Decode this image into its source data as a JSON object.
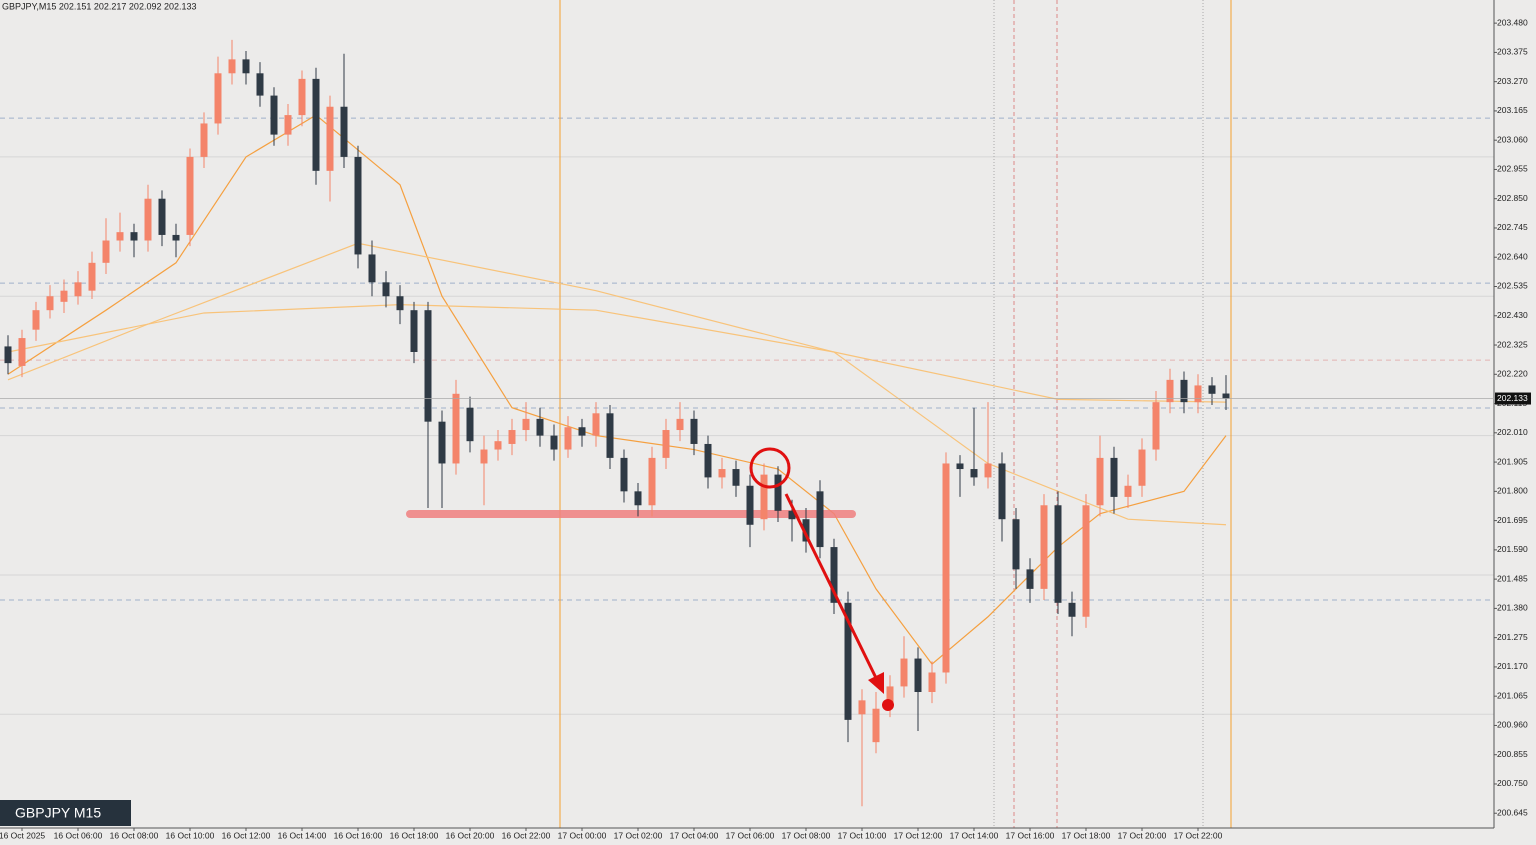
{
  "chart_data": {
    "type": "candlestick",
    "title": "GBPJPY,M15  202.151 202.217 202.092 202.133",
    "symbol_label": "GBPJPY M15",
    "current_price": 202.133,
    "bull_color": "#f4846a",
    "bear_color": "#2f3a45",
    "ylim": [
      200.592,
      203.563
    ],
    "yticks": [
      {
        "value": 203.48,
        "label": "203.480"
      },
      203.375,
      {
        "value": 203.27,
        "label": "203.270"
      },
      203.165,
      {
        "value": 203.06,
        "label": "203.060"
      },
      202.955,
      {
        "value": 202.85,
        "label": "202.850"
      },
      202.745,
      {
        "value": 202.64,
        "label": "202.640"
      },
      202.535,
      {
        "value": 202.43,
        "label": "202.430"
      },
      202.325,
      {
        "value": 202.22,
        "label": "202.220"
      },
      202.115,
      {
        "value": 202.01,
        "label": "202.010"
      },
      201.905,
      {
        "value": 201.8,
        "label": "201.800"
      },
      201.695,
      {
        "value": 201.59,
        "label": "201.590"
      },
      201.485,
      {
        "value": 201.38,
        "label": "201.380"
      },
      201.275,
      {
        "value": 201.17,
        "label": "201.170"
      },
      201.065,
      {
        "value": 200.96,
        "label": "200.960"
      },
      200.855,
      {
        "value": 200.75,
        "label": "200.750"
      },
      200.645
    ],
    "categories": [
      null,
      "16 Oct 2025",
      null,
      null,
      null,
      "16 Oct 06:00",
      null,
      null,
      null,
      "16 Oct 08:00",
      null,
      null,
      null,
      "16 Oct 10:00",
      null,
      null,
      null,
      "16 Oct 12:00",
      null,
      null,
      null,
      "16 Oct 14:00",
      null,
      null,
      null,
      "16 Oct 16:00",
      null,
      null,
      null,
      "16 Oct 18:00",
      null,
      null,
      null,
      "16 Oct 20:00",
      null,
      null,
      null,
      "16 Oct 22:00",
      null,
      null,
      null,
      "17 Oct 00:00",
      null,
      null,
      null,
      "17 Oct 02:00",
      null,
      null,
      null,
      "17 Oct 04:00",
      null,
      null,
      null,
      "17 Oct 06:00",
      null,
      null,
      null,
      "17 Oct 08:00",
      null,
      null,
      null,
      "17 Oct 10:00",
      null,
      null,
      null,
      "17 Oct 12:00",
      null,
      null,
      null,
      "17 Oct 14:00",
      null,
      null,
      null,
      "17 Oct 16:00",
      null,
      null,
      null,
      "17 Oct 18:00",
      null,
      null,
      null,
      "17 Oct 20:00",
      null,
      null,
      null,
      "17 Oct 22:00",
      null,
      null
    ],
    "candles": [
      [
        202.32,
        202.36,
        202.22,
        202.26
      ],
      [
        202.25,
        202.38,
        202.21,
        202.35
      ],
      [
        202.38,
        202.48,
        202.34,
        202.45
      ],
      [
        202.45,
        202.54,
        202.42,
        202.5
      ],
      [
        202.48,
        202.56,
        202.44,
        202.52
      ],
      [
        202.5,
        202.59,
        202.47,
        202.55
      ],
      [
        202.52,
        202.66,
        202.49,
        202.62
      ],
      [
        202.62,
        202.78,
        202.58,
        202.7
      ],
      [
        202.7,
        202.8,
        202.66,
        202.73
      ],
      [
        202.73,
        202.76,
        202.64,
        202.7
      ],
      [
        202.7,
        202.9,
        202.66,
        202.85
      ],
      [
        202.85,
        202.88,
        202.68,
        202.72
      ],
      [
        202.72,
        202.76,
        202.64,
        202.7
      ],
      [
        202.72,
        203.03,
        202.68,
        203.0
      ],
      [
        203.0,
        203.16,
        202.96,
        203.12
      ],
      [
        203.12,
        203.36,
        203.08,
        203.3
      ],
      [
        203.3,
        203.42,
        203.26,
        203.35
      ],
      [
        203.35,
        203.38,
        203.26,
        203.3
      ],
      [
        203.3,
        203.34,
        203.18,
        203.22
      ],
      [
        203.22,
        203.25,
        203.04,
        203.08
      ],
      [
        203.08,
        203.19,
        203.04,
        203.15
      ],
      [
        203.15,
        203.31,
        203.11,
        203.28
      ],
      [
        203.28,
        203.32,
        202.9,
        202.95
      ],
      [
        202.95,
        203.22,
        202.84,
        203.18
      ],
      [
        203.18,
        203.37,
        202.96,
        203.0
      ],
      [
        203.0,
        203.04,
        202.6,
        202.65
      ],
      [
        202.65,
        202.7,
        202.5,
        202.55
      ],
      [
        202.55,
        202.59,
        202.46,
        202.5
      ],
      [
        202.5,
        202.54,
        202.4,
        202.45
      ],
      [
        202.45,
        202.48,
        202.26,
        202.3
      ],
      [
        202.45,
        202.48,
        201.74,
        202.05
      ],
      [
        202.05,
        202.09,
        201.74,
        201.9
      ],
      [
        201.9,
        202.2,
        201.86,
        202.15
      ],
      [
        202.1,
        202.14,
        201.94,
        201.98
      ],
      [
        201.9,
        202.0,
        201.75,
        201.95
      ],
      [
        201.95,
        202.02,
        201.91,
        201.98
      ],
      [
        201.97,
        202.06,
        201.93,
        202.02
      ],
      [
        202.02,
        202.12,
        201.98,
        202.06
      ],
      [
        202.06,
        202.1,
        201.96,
        202.0
      ],
      [
        202.0,
        202.04,
        201.91,
        201.95
      ],
      [
        201.95,
        202.07,
        201.92,
        202.03
      ],
      [
        202.03,
        202.06,
        201.96,
        202.0
      ],
      [
        202.0,
        202.12,
        201.96,
        202.08
      ],
      [
        202.08,
        202.11,
        201.88,
        201.92
      ],
      [
        201.92,
        201.95,
        201.76,
        201.8
      ],
      [
        201.8,
        201.83,
        201.71,
        201.75
      ],
      [
        201.75,
        201.96,
        201.71,
        201.92
      ],
      [
        201.92,
        202.06,
        201.88,
        202.02
      ],
      [
        202.02,
        202.12,
        201.98,
        202.06
      ],
      [
        202.06,
        202.09,
        201.93,
        201.97
      ],
      [
        201.97,
        202.0,
        201.81,
        201.85
      ],
      [
        201.85,
        201.92,
        201.81,
        201.88
      ],
      [
        201.88,
        201.91,
        201.78,
        201.82
      ],
      [
        201.82,
        201.86,
        201.6,
        201.68
      ],
      [
        201.7,
        201.9,
        201.66,
        201.86
      ],
      [
        201.86,
        201.89,
        201.69,
        201.73
      ],
      [
        201.73,
        201.77,
        201.62,
        201.7
      ],
      [
        201.7,
        201.74,
        201.58,
        201.62
      ],
      [
        201.8,
        201.84,
        201.56,
        201.6
      ],
      [
        201.6,
        201.63,
        201.36,
        201.4
      ],
      [
        201.4,
        201.44,
        200.9,
        200.98
      ],
      [
        201.0,
        201.09,
        200.67,
        201.05
      ],
      [
        200.9,
        201.08,
        200.86,
        201.02
      ],
      [
        201.03,
        201.14,
        200.99,
        201.1
      ],
      [
        201.1,
        201.28,
        201.06,
        201.2
      ],
      [
        201.2,
        201.24,
        200.94,
        201.08
      ],
      [
        201.08,
        201.19,
        201.04,
        201.15
      ],
      [
        201.15,
        201.94,
        201.11,
        201.9
      ],
      [
        201.9,
        201.93,
        201.78,
        201.88
      ],
      [
        201.88,
        202.1,
        201.82,
        201.85
      ],
      [
        201.85,
        202.12,
        201.81,
        201.9
      ],
      [
        201.9,
        201.94,
        201.62,
        201.7
      ],
      [
        201.7,
        201.74,
        201.45,
        201.52
      ],
      [
        201.52,
        201.56,
        201.4,
        201.45
      ],
      [
        201.45,
        201.79,
        201.41,
        201.75
      ],
      [
        201.75,
        201.8,
        201.36,
        201.4
      ],
      [
        201.4,
        201.44,
        201.28,
        201.35
      ],
      [
        201.35,
        201.79,
        201.31,
        201.75
      ],
      [
        201.75,
        202.0,
        201.71,
        201.92
      ],
      [
        201.92,
        201.96,
        201.72,
        201.78
      ],
      [
        201.78,
        201.86,
        201.74,
        201.82
      ],
      [
        201.82,
        201.99,
        201.78,
        201.95
      ],
      [
        201.95,
        202.16,
        201.91,
        202.12
      ],
      [
        202.12,
        202.24,
        202.08,
        202.2
      ],
      [
        202.2,
        202.23,
        202.08,
        202.12
      ],
      [
        202.12,
        202.22,
        202.08,
        202.18
      ],
      [
        202.18,
        202.21,
        202.11,
        202.15
      ],
      [
        202.151,
        202.217,
        202.092,
        202.133
      ]
    ],
    "lines": [
      {
        "color": "#f5a040",
        "x": [
          0,
          7,
          12,
          17,
          22,
          28,
          31,
          36,
          42,
          49,
          55,
          59,
          62,
          66,
          70,
          75,
          78,
          84,
          87
        ],
        "values": [
          202.22,
          202.45,
          202.62,
          203.0,
          203.15,
          202.9,
          202.5,
          202.1,
          202.0,
          201.95,
          201.88,
          201.72,
          201.45,
          201.18,
          201.35,
          201.6,
          201.72,
          201.8,
          202.0
        ]
      },
      {
        "color": "#f8c37a",
        "x": [
          0,
          10,
          25,
          42,
          59,
          70,
          80,
          87
        ],
        "values": [
          202.2,
          202.4,
          202.69,
          202.52,
          202.3,
          201.9,
          201.7,
          201.68
        ]
      },
      {
        "color": "#f8c37a",
        "x": [
          0,
          14,
          28,
          42,
          59,
          75,
          87
        ],
        "values": [
          202.3,
          202.44,
          202.47,
          202.45,
          202.3,
          202.13,
          202.12
        ]
      }
    ],
    "levels": [
      {
        "value": 203.0,
        "color": "#d6d6d6"
      },
      {
        "value": 202.5,
        "color": "#d6d6d6"
      },
      {
        "value": 202.0,
        "color": "#d6d6d6"
      },
      {
        "value": 201.5,
        "color": "#d6d6d6"
      },
      {
        "value": 201.0,
        "color": "#d6d6d6"
      }
    ],
    "dashed_levels": [
      {
        "value": 203.139,
        "color": "#9fb1c9"
      },
      {
        "value": 202.547,
        "color": "#9fb1c9"
      },
      {
        "value": 202.271,
        "color": "#e3b2b2"
      },
      {
        "value": 202.099,
        "color": "#9fb1c9"
      },
      {
        "value": 201.41,
        "color": "#9fb1c9"
      }
    ]
  }
}
